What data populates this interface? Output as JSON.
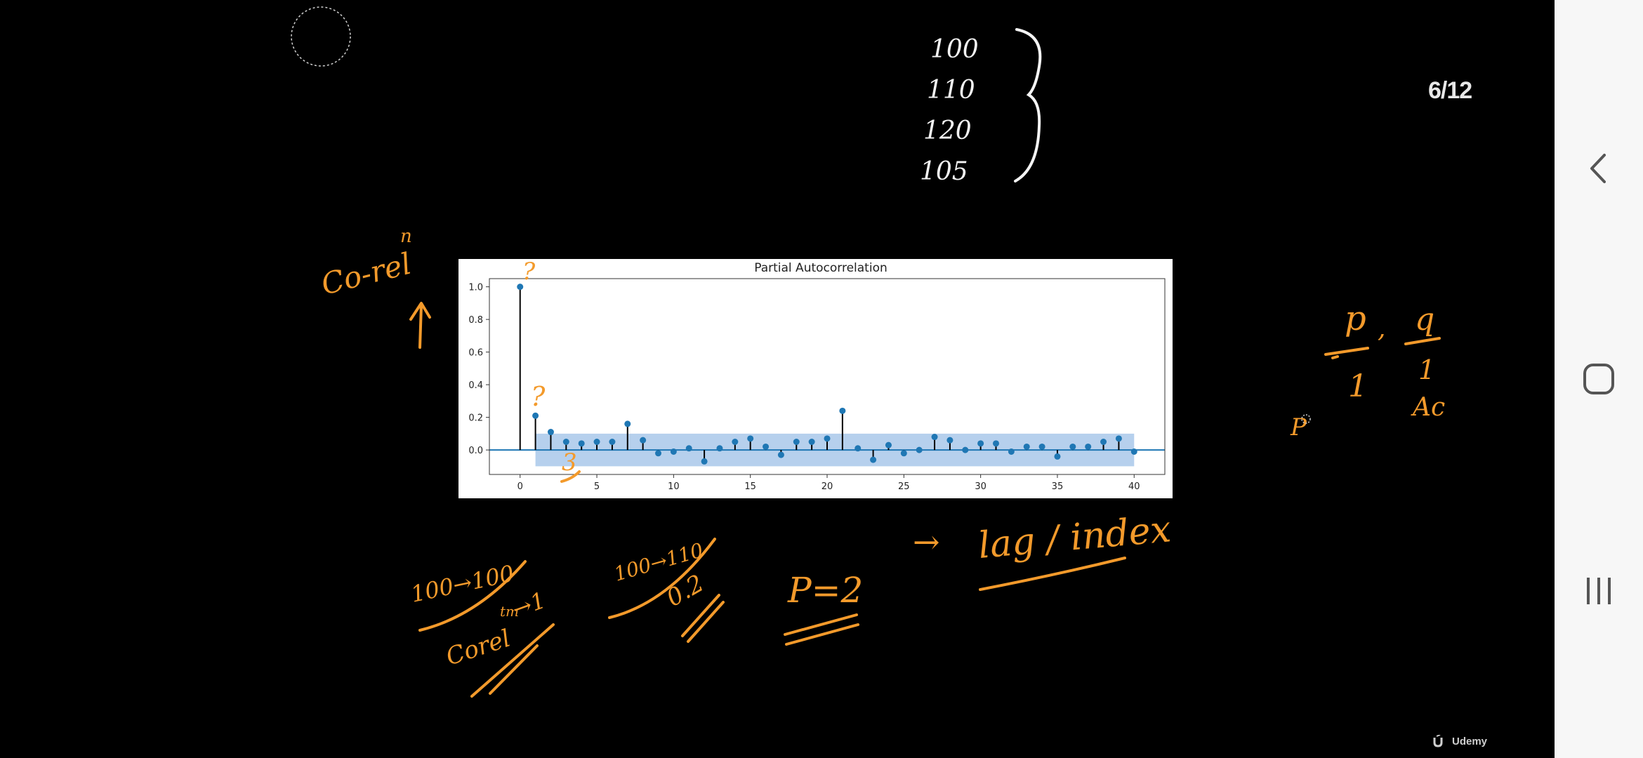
{
  "slide": {
    "page_counter": "6/12",
    "watermark_text": "Udemy"
  },
  "notes": {
    "values_list": [
      "100",
      "110",
      "120",
      "105"
    ],
    "corr_label": "Co-rel",
    "corr_label_sup": "n",
    "pq_p": "p",
    "pq_q": "q",
    "pq_bottom_left": "1",
    "pq_bottom_right": "1",
    "pq_ac": "Ac",
    "small_p": "P",
    "note_1_top": "100→100",
    "note_1_bottom": "Corel",
    "note_1_sup": "tm",
    "note_1_result": "→1",
    "note_2_top": "100→110",
    "note_2_bottom": "0.2",
    "note_p_eq": "P=2",
    "note_lag_arrow": "→",
    "note_lag": "lag / index",
    "marker_q1": "?",
    "marker_q2": "?",
    "marker_3": "3"
  },
  "chart_data": {
    "type": "stem",
    "title": "Partial Autocorrelation",
    "xlabel": "",
    "ylabel": "",
    "x_ticks": [
      0,
      5,
      10,
      15,
      20,
      25,
      30,
      35,
      40
    ],
    "y_ticks": [
      "0.0",
      "0.2",
      "0.4",
      "0.6",
      "0.8",
      "1.0"
    ],
    "xlim": [
      -2,
      42
    ],
    "ylim": [
      -0.15,
      1.05
    ],
    "confidence_band": [
      -0.1,
      0.1
    ],
    "confidence_band_start_lag": 1,
    "lags": [
      0,
      1,
      2,
      3,
      4,
      5,
      6,
      7,
      8,
      9,
      10,
      11,
      12,
      13,
      14,
      15,
      16,
      17,
      18,
      19,
      20,
      21,
      22,
      23,
      24,
      25,
      26,
      27,
      28,
      29,
      30,
      31,
      32,
      33,
      34,
      35,
      36,
      37,
      38,
      39,
      40
    ],
    "values": [
      1.0,
      0.21,
      0.11,
      0.05,
      0.04,
      0.05,
      0.05,
      0.16,
      0.06,
      -0.02,
      -0.01,
      0.01,
      -0.07,
      0.01,
      0.05,
      0.07,
      0.02,
      -0.03,
      0.05,
      0.05,
      0.07,
      0.24,
      0.01,
      -0.06,
      0.03,
      -0.02,
      0.0,
      0.08,
      0.06,
      0.0,
      0.04,
      0.04,
      -0.01,
      0.02,
      0.02,
      -0.04,
      0.02,
      0.02,
      0.05,
      0.07,
      -0.01
    ],
    "colors": {
      "stem": "#000000",
      "marker": "#1f77b4",
      "band": "#a9c8ea",
      "zero_line": "#1f77b4"
    }
  },
  "nav": {
    "back_icon": "chevron-left-icon",
    "home_icon": "rounded-square-icon",
    "recents_icon": "three-bars-icon"
  }
}
